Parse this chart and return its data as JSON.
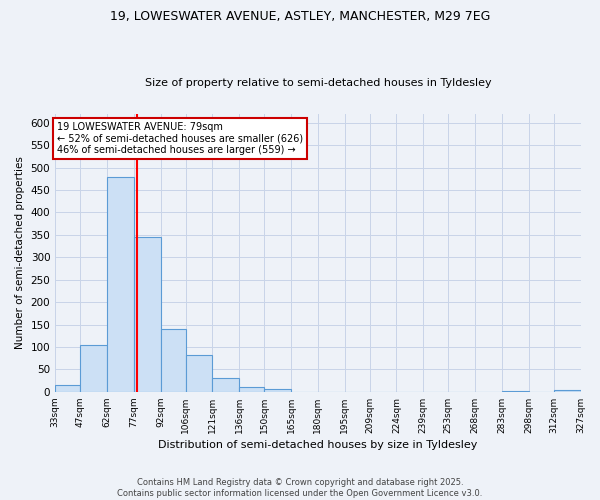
{
  "title_line1": "19, LOWESWATER AVENUE, ASTLEY, MANCHESTER, M29 7EG",
  "title_line2": "Size of property relative to semi-detached houses in Tyldesley",
  "xlabel": "Distribution of semi-detached houses by size in Tyldesley",
  "ylabel": "Number of semi-detached properties",
  "bar_edges": [
    33,
    47,
    62,
    77,
    92,
    106,
    121,
    136,
    150,
    165,
    180,
    195,
    209,
    224,
    239,
    253,
    268,
    283,
    298,
    312,
    327
  ],
  "bar_heights": [
    15,
    105,
    480,
    345,
    140,
    83,
    30,
    10,
    6,
    0,
    0,
    0,
    0,
    0,
    0,
    0,
    0,
    2,
    0,
    3
  ],
  "bar_color": "#cce0f5",
  "bar_edge_color": "#5b9bd5",
  "grid_color": "#c8d4e8",
  "bg_color": "#eef2f8",
  "red_line_x": 79,
  "annotation_text": "19 LOWESWATER AVENUE: 79sqm\n← 52% of semi-detached houses are smaller (626)\n46% of semi-detached houses are larger (559) →",
  "annotation_box_color": "#ffffff",
  "annotation_box_edge": "#cc0000",
  "footer_text": "Contains HM Land Registry data © Crown copyright and database right 2025.\nContains public sector information licensed under the Open Government Licence v3.0.",
  "ylim": [
    0,
    620
  ],
  "yticks": [
    0,
    50,
    100,
    150,
    200,
    250,
    300,
    350,
    400,
    450,
    500,
    550,
    600
  ]
}
